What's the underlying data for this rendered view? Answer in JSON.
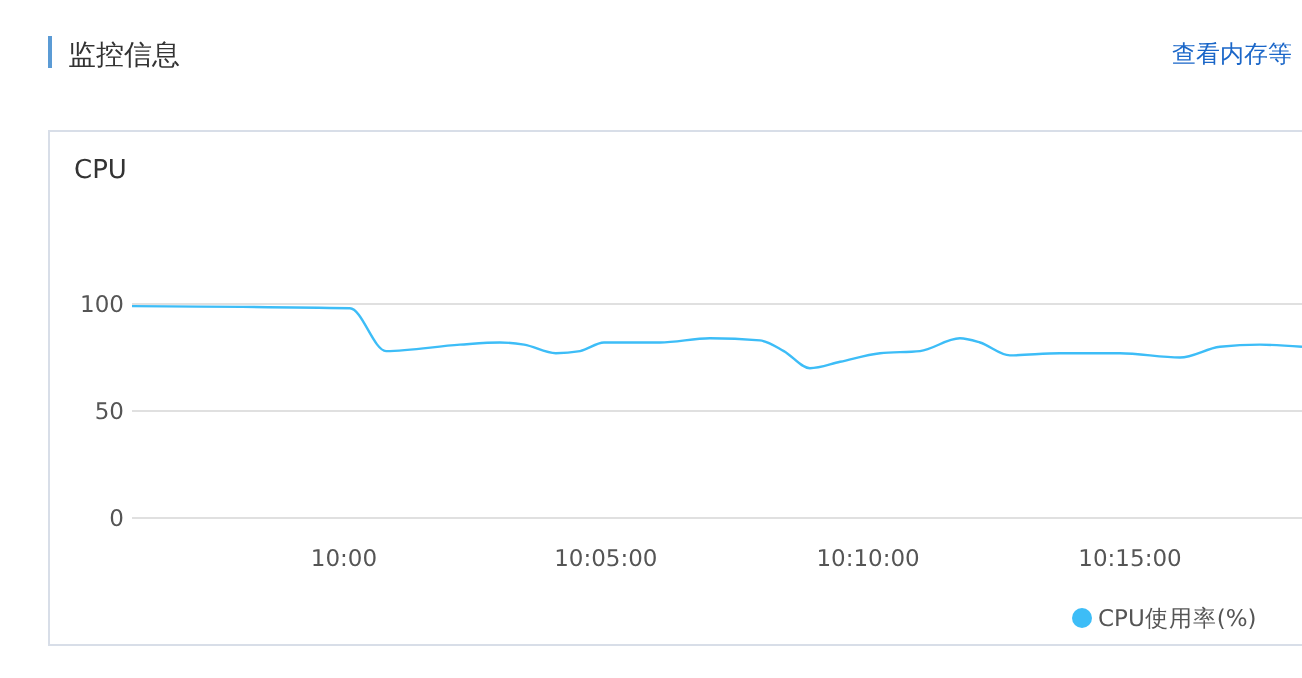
{
  "chart_data": {
    "type": "line",
    "title": "监控信息",
    "subtitle": "CPU",
    "annotations": [
      "查看内存等"
    ],
    "x": [
      9.9326,
      10.0019,
      10.0134,
      10.0369,
      10.0496,
      10.0573,
      10.0674,
      10.0751,
      10.0827,
      10.1005,
      10.1164,
      10.1323,
      10.1399,
      10.1482,
      10.1578,
      10.1705,
      10.1832,
      10.1959,
      10.2023,
      10.2118,
      10.2277,
      10.2468,
      10.2659,
      10.2786,
      10.2913,
      10.3047
    ],
    "series": [
      {
        "name": "CPU使用率(%)",
        "color": "#3dbdf7",
        "values": [
          99,
          98,
          78,
          81,
          82,
          81,
          77,
          78,
          82,
          82,
          84,
          83,
          78,
          70,
          73,
          77,
          78,
          84,
          82,
          76,
          77,
          77,
          75,
          80,
          81,
          80
        ]
      }
    ],
    "xlim": [
      9.9326,
      10.3047
    ],
    "xticks": [
      {
        "value": 10,
        "label": "10:00"
      },
      {
        "value": 10.0833,
        "label": "10:05:00"
      },
      {
        "value": 10.1667,
        "label": "10:10:00"
      },
      {
        "value": 10.25,
        "label": "10:15:00"
      }
    ],
    "ylim": [
      0,
      100
    ],
    "yticks": [
      0,
      50,
      100
    ],
    "grid": "y",
    "legend": "bottom right",
    "marker": "none",
    "line_style": "solid"
  }
}
